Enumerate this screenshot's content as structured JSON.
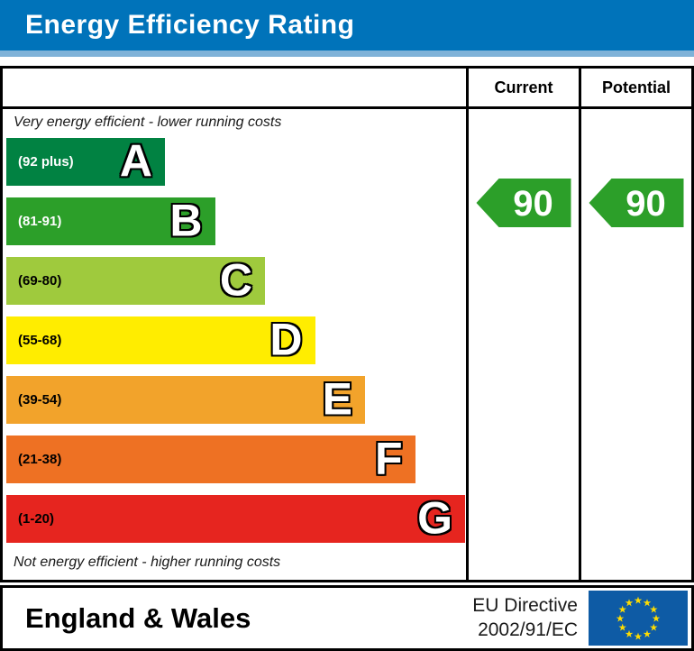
{
  "title": {
    "text": "Energy Efficiency Rating",
    "bg_color": "#0073ba",
    "underline_color": "#7fb2d8",
    "text_color": "#ffffff"
  },
  "table": {
    "columns": {
      "current": "Current",
      "potential": "Potential"
    },
    "top_caption": "Very energy efficient - lower running costs",
    "bottom_caption": "Not energy efficient - higher running costs",
    "bands": [
      {
        "letter": "A",
        "range": "(92 plus)",
        "color": "#018242",
        "text_color": "#ffffff"
      },
      {
        "letter": "B",
        "range": "(81-91)",
        "color": "#2c9f29",
        "text_color": "#ffffff"
      },
      {
        "letter": "C",
        "range": "(69-80)",
        "color": "#9fca3d",
        "text_color": "#000000"
      },
      {
        "letter": "D",
        "range": "(55-68)",
        "color": "#ffed00",
        "text_color": "#000000"
      },
      {
        "letter": "E",
        "range": "(39-54)",
        "color": "#f2a32b",
        "text_color": "#000000"
      },
      {
        "letter": "F",
        "range": "(21-38)",
        "color": "#ee7123",
        "text_color": "#000000"
      },
      {
        "letter": "G",
        "range": "(1-20)",
        "color": "#e6251f",
        "text_color": "#000000"
      }
    ],
    "current": {
      "value": "90",
      "band": "B",
      "arrow_color": "#2c9f29"
    },
    "potential": {
      "value": "90",
      "band": "B",
      "arrow_color": "#2c9f29"
    }
  },
  "footer": {
    "region": "England & Wales",
    "directive_line1": "EU Directive",
    "directive_line2": "2002/91/EC",
    "eu_flag": {
      "bg_color": "#0e5ba5",
      "star_color": "#ffdd00"
    }
  },
  "chart_data": {
    "type": "bar",
    "title": "Energy Efficiency Rating",
    "categories": [
      "A",
      "B",
      "C",
      "D",
      "E",
      "F",
      "G"
    ],
    "band_ranges": [
      "92 plus",
      "81-91",
      "69-80",
      "55-68",
      "39-54",
      "21-38",
      "1-20"
    ],
    "band_colors": [
      "#018242",
      "#2c9f29",
      "#9fca3d",
      "#ffed00",
      "#f2a32b",
      "#ee7123",
      "#e6251f"
    ],
    "series": [
      {
        "name": "Current",
        "value": 90,
        "band": "B"
      },
      {
        "name": "Potential",
        "value": 90,
        "band": "B"
      }
    ],
    "xlabel": "",
    "ylabel": "",
    "annotations": [
      "Very energy efficient - lower running costs",
      "Not energy efficient - higher running costs",
      "England & Wales",
      "EU Directive 2002/91/EC"
    ],
    "legend_position": "none",
    "grid": false
  }
}
